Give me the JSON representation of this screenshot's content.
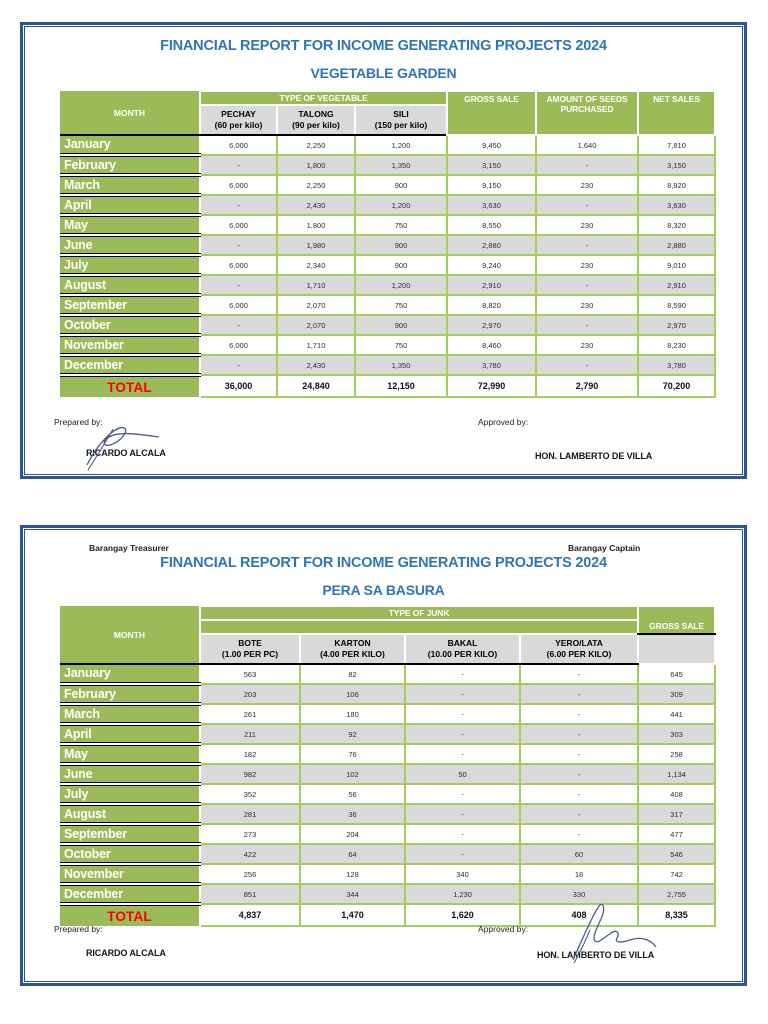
{
  "colors": {
    "header_green": "#9BBB59",
    "grid_green": "#A4CD60",
    "row_gray": "#D9D9D9",
    "title_blue": "#2E75B6",
    "page_border_blue": "#2F5496",
    "total_red": "#FF0000",
    "signature_ink": "#4D5A8D"
  },
  "page1": {
    "title": "FINANCIAL REPORT FOR INCOME GENERATING PROJECTS 2024",
    "subtitle": "VEGETABLE GARDEN",
    "signatures": {
      "prepared_label": "Prepared by:",
      "prepared_name": "RICARDO ALCALA",
      "approved_label": "Approved by:",
      "approved_name": "HON. LAMBERTO DE VILLA"
    },
    "table": {
      "month_header": "MONTH",
      "group_header": "TYPE OF VEGETABLE",
      "col_headers": [
        "GROSS SALE",
        "AMOUNT OF SEEDS PURCHASED",
        "NET SALES"
      ],
      "sub_headers": [
        {
          "name": "PECHAY",
          "rate": "(60 per kilo)"
        },
        {
          "name": "TALONG",
          "rate": "(90 per kilo)"
        },
        {
          "name": "SILI",
          "rate": "(150 per kilo)"
        }
      ],
      "rows": [
        {
          "month": "January",
          "values": [
            "6,000",
            "2,250",
            "1,200",
            "9,450",
            "1,640",
            "7,810"
          ]
        },
        {
          "month": "February",
          "values": [
            "-",
            "1,800",
            "1,350",
            "3,150",
            "-",
            "3,150"
          ]
        },
        {
          "month": "March",
          "values": [
            "6,000",
            "2,250",
            "900",
            "9,150",
            "230",
            "8,920"
          ]
        },
        {
          "month": "April",
          "values": [
            "-",
            "2,430",
            "1,200",
            "3,630",
            "-",
            "3,630"
          ]
        },
        {
          "month": "May",
          "values": [
            "6,000",
            "1,800",
            "750",
            "8,550",
            "230",
            "8,320"
          ]
        },
        {
          "month": "June",
          "values": [
            "-",
            "1,980",
            "900",
            "2,880",
            "-",
            "2,880"
          ]
        },
        {
          "month": "July",
          "values": [
            "6,000",
            "2,340",
            "900",
            "9,240",
            "230",
            "9,010"
          ]
        },
        {
          "month": "August",
          "values": [
            "-",
            "1,710",
            "1,200",
            "2,910",
            "-",
            "2,910"
          ]
        },
        {
          "month": "September",
          "values": [
            "6,000",
            "2,070",
            "750",
            "8,820",
            "230",
            "8,590"
          ]
        },
        {
          "month": "October",
          "values": [
            "-",
            "2,070",
            "900",
            "2,970",
            "-",
            "2,970"
          ]
        },
        {
          "month": "November",
          "values": [
            "6,000",
            "1,710",
            "750",
            "8,460",
            "230",
            "8,230"
          ]
        },
        {
          "month": "December",
          "values": [
            "-",
            "2,430",
            "1,350",
            "3,780",
            "-",
            "3,780"
          ]
        }
      ],
      "total_label": "TOTAL",
      "totals": [
        "36,000",
        "24,840",
        "12,150",
        "72,990",
        "2,790",
        "70,200"
      ]
    }
  },
  "page2": {
    "treasurer_label": "Barangay Treasurer",
    "captain_label": "Barangay Captain",
    "title": "FINANCIAL REPORT FOR INCOME GENERATING PROJECTS 2024",
    "subtitle": "PERA SA BASURA",
    "signatures": {
      "prepared_label": "Prepared by:",
      "prepared_name": "RICARDO ALCALA",
      "approved_label": "Approved by:",
      "approved_name": "HON. LAMBERTO DE VILLA"
    },
    "table": {
      "month_header": "MONTH",
      "group_header": "TYPE OF JUNK",
      "gross_header": "GROSS SALE",
      "sub_headers": [
        {
          "name": "BOTE",
          "rate": "(1.00 PER PC)"
        },
        {
          "name": "KARTON",
          "rate": "(4.00 PER KILO)"
        },
        {
          "name": "BAKAL",
          "rate": "(10.00 PER KILO)"
        },
        {
          "name": "YERO/LATA",
          "rate": "(6.00 PER KILO)"
        }
      ],
      "rows": [
        {
          "month": "January",
          "values": [
            "563",
            "82",
            "-",
            "-",
            "645"
          ]
        },
        {
          "month": "February",
          "values": [
            "203",
            "106",
            "-",
            "-",
            "309"
          ]
        },
        {
          "month": "March",
          "values": [
            "261",
            "180",
            "-",
            "-",
            "441"
          ]
        },
        {
          "month": "April",
          "values": [
            "211",
            "92",
            "-",
            "-",
            "303"
          ]
        },
        {
          "month": "May",
          "values": [
            "182",
            "76",
            "-",
            "-",
            "258"
          ]
        },
        {
          "month": "June",
          "values": [
            "982",
            "102",
            "50",
            "-",
            "1,134"
          ]
        },
        {
          "month": "July",
          "values": [
            "352",
            "56",
            "-",
            "-",
            "408"
          ]
        },
        {
          "month": "August",
          "values": [
            "281",
            "36",
            "-",
            "-",
            "317"
          ]
        },
        {
          "month": "September",
          "values": [
            "273",
            "204",
            "-",
            "-",
            "477"
          ]
        },
        {
          "month": "October",
          "values": [
            "422",
            "64",
            "-",
            "60",
            "546"
          ]
        },
        {
          "month": "November",
          "values": [
            "256",
            "128",
            "340",
            "18",
            "742"
          ]
        },
        {
          "month": "December",
          "values": [
            "851",
            "344",
            "1,230",
            "330",
            "2,755"
          ]
        }
      ],
      "total_label": "TOTAL",
      "totals": [
        "4,837",
        "1,470",
        "1,620",
        "408",
        "8,335"
      ]
    }
  }
}
